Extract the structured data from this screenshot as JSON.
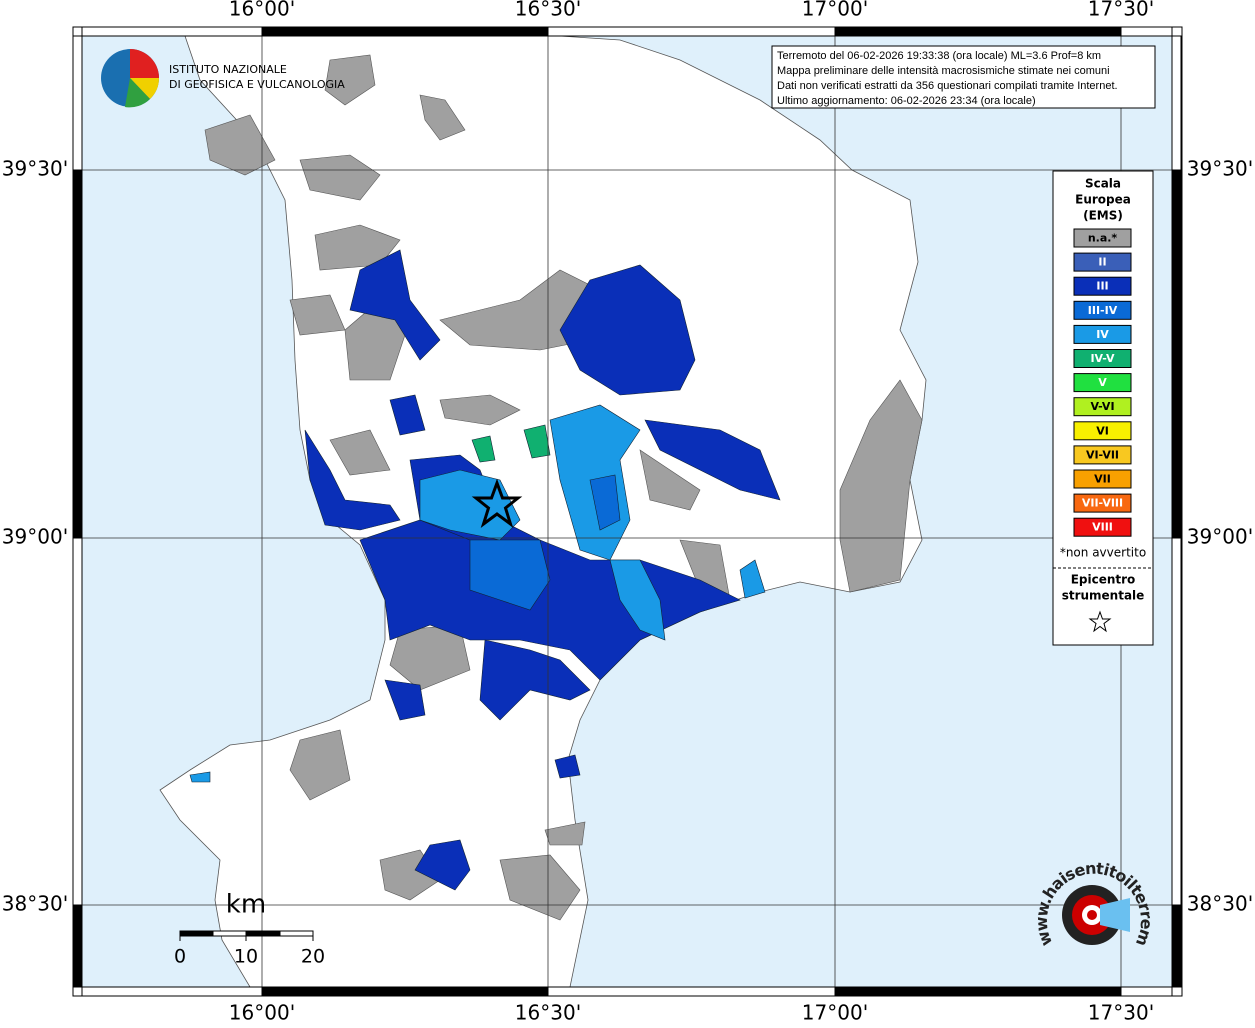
{
  "map": {
    "lon_labels": [
      "16°00'",
      "16°30'",
      "17°00'",
      "17°30'"
    ],
    "lat_labels": [
      "39°30'",
      "39°00'",
      "38°30'"
    ],
    "logo": {
      "line1": "ISTITUTO NAZIONALE",
      "line2": "DI GEOFISICA E VULCANOLOGIA"
    },
    "info": [
      "Terremoto del 06-02-2026 19:33:38 (ora locale) ML=3.6 Prof=8 km",
      "Mappa preliminare delle intensità macrosismiche stimate nei comuni",
      "Dati non verificati estratti da 356 questionari compilati tramite Internet.",
      "Ultimo aggiornamento: 06-02-2026 23:34 (ora locale)"
    ],
    "legend": {
      "title": [
        "Scala",
        "Europea",
        "(EMS)"
      ],
      "items": [
        {
          "label": "n.a.*",
          "color": "#a0a0a0"
        },
        {
          "label": "II",
          "color": "#3a5fb8"
        },
        {
          "label": "III",
          "color": "#0a2fb8"
        },
        {
          "label": "III-IV",
          "color": "#0a6ad6"
        },
        {
          "label": "IV",
          "color": "#1a9ae6"
        },
        {
          "label": "IV-V",
          "color": "#10b070"
        },
        {
          "label": "V",
          "color": "#20e040"
        },
        {
          "label": "V-VI",
          "color": "#b0f020"
        },
        {
          "label": "VI",
          "color": "#f8f000"
        },
        {
          "label": "VI-VII",
          "color": "#f8c820"
        },
        {
          "label": "VII",
          "color": "#f8a000"
        },
        {
          "label": "VII-VIII",
          "color": "#f86810"
        },
        {
          "label": "VIII",
          "color": "#f01010"
        }
      ],
      "note": "*non avvertito",
      "epicentre": [
        "Epicentro",
        "strumentale"
      ]
    },
    "scale": {
      "unit": "km",
      "ticks": [
        "0",
        "10",
        "20"
      ]
    },
    "site": "www.haisentitoilterremoto.it"
  }
}
